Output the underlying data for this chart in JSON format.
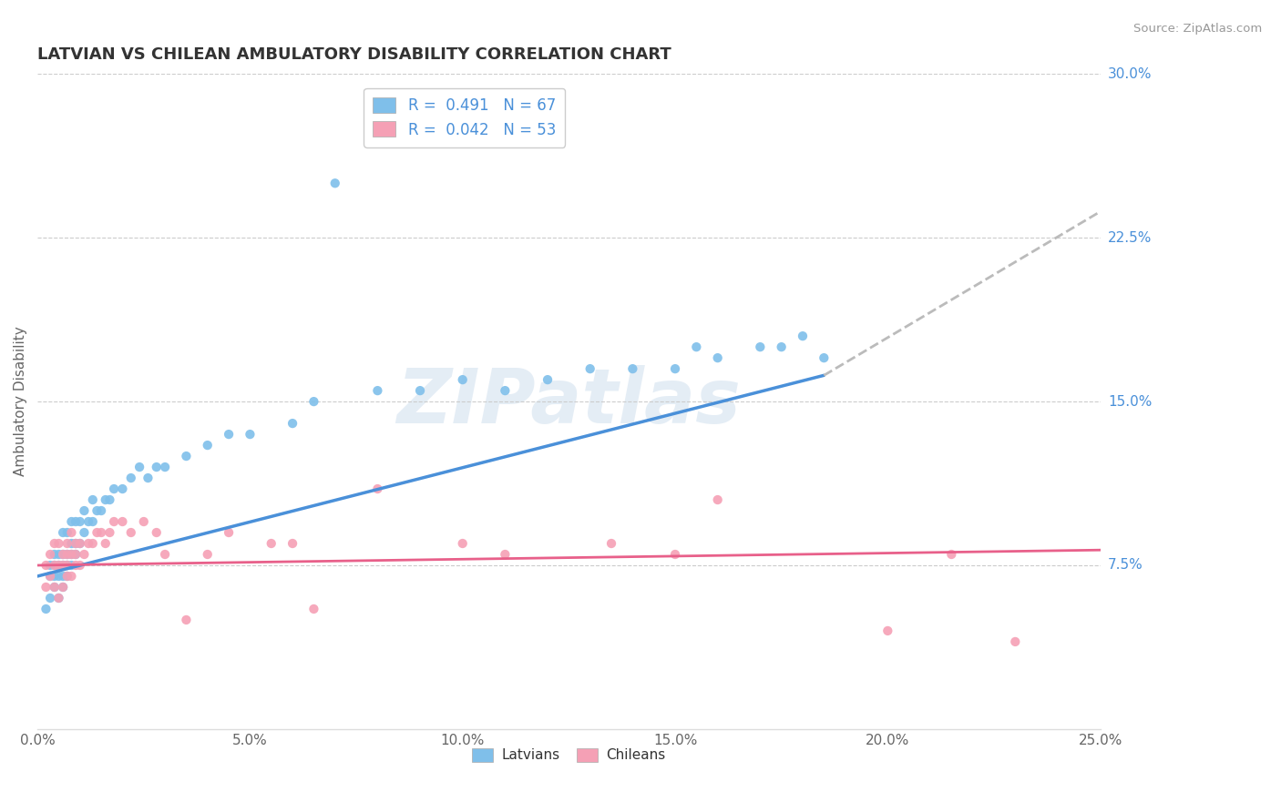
{
  "title": "LATVIAN VS CHILEAN AMBULATORY DISABILITY CORRELATION CHART",
  "source": "Source: ZipAtlas.com",
  "ylabel": "Ambulatory Disability",
  "xlim": [
    0.0,
    0.25
  ],
  "ylim": [
    0.0,
    0.3
  ],
  "xticks": [
    0.0,
    0.05,
    0.1,
    0.15,
    0.2,
    0.25
  ],
  "xticklabels": [
    "0.0%",
    "5.0%",
    "10.0%",
    "15.0%",
    "20.0%",
    "25.0%"
  ],
  "ytick_values": [
    0.075,
    0.15,
    0.225,
    0.3
  ],
  "ytick_labels": [
    "7.5%",
    "15.0%",
    "22.5%",
    "30.0%"
  ],
  "latvian_dot_color": "#7fbfea",
  "chilean_dot_color": "#f5a0b5",
  "latvian_line_color": "#4a90d9",
  "chilean_line_color": "#e8608a",
  "dashed_line_color": "#bbbbbb",
  "R_latvian": 0.491,
  "N_latvian": 67,
  "R_chilean": 0.042,
  "N_chilean": 53,
  "watermark": "ZIPatlas",
  "background_color": "#ffffff",
  "grid_color": "#cccccc",
  "axis_label_color": "#4a90d9",
  "title_color": "#333333",
  "source_color": "#999999",
  "legend_R_color": "#000000",
  "legend_N_color": "#4a90d9",
  "latvian_x": [
    0.002,
    0.003,
    0.003,
    0.003,
    0.004,
    0.004,
    0.004,
    0.004,
    0.005,
    0.005,
    0.005,
    0.005,
    0.006,
    0.006,
    0.006,
    0.006,
    0.006,
    0.007,
    0.007,
    0.007,
    0.007,
    0.008,
    0.008,
    0.008,
    0.008,
    0.009,
    0.009,
    0.009,
    0.01,
    0.01,
    0.011,
    0.011,
    0.012,
    0.013,
    0.013,
    0.014,
    0.015,
    0.016,
    0.017,
    0.018,
    0.02,
    0.022,
    0.024,
    0.026,
    0.028,
    0.03,
    0.035,
    0.04,
    0.045,
    0.05,
    0.06,
    0.065,
    0.07,
    0.08,
    0.09,
    0.1,
    0.11,
    0.12,
    0.13,
    0.14,
    0.15,
    0.155,
    0.16,
    0.17,
    0.175,
    0.18,
    0.185
  ],
  "latvian_y": [
    0.055,
    0.06,
    0.07,
    0.075,
    0.065,
    0.07,
    0.075,
    0.08,
    0.06,
    0.07,
    0.075,
    0.08,
    0.065,
    0.07,
    0.075,
    0.08,
    0.09,
    0.07,
    0.075,
    0.08,
    0.09,
    0.075,
    0.08,
    0.085,
    0.095,
    0.08,
    0.085,
    0.095,
    0.085,
    0.095,
    0.09,
    0.1,
    0.095,
    0.095,
    0.105,
    0.1,
    0.1,
    0.105,
    0.105,
    0.11,
    0.11,
    0.115,
    0.12,
    0.115,
    0.12,
    0.12,
    0.125,
    0.13,
    0.135,
    0.135,
    0.14,
    0.15,
    0.25,
    0.155,
    0.155,
    0.16,
    0.155,
    0.16,
    0.165,
    0.165,
    0.165,
    0.175,
    0.17,
    0.175,
    0.175,
    0.18,
    0.17
  ],
  "chilean_x": [
    0.002,
    0.002,
    0.003,
    0.003,
    0.004,
    0.004,
    0.004,
    0.005,
    0.005,
    0.005,
    0.006,
    0.006,
    0.006,
    0.007,
    0.007,
    0.007,
    0.007,
    0.008,
    0.008,
    0.008,
    0.009,
    0.009,
    0.009,
    0.01,
    0.01,
    0.011,
    0.012,
    0.013,
    0.014,
    0.015,
    0.016,
    0.017,
    0.018,
    0.02,
    0.022,
    0.025,
    0.028,
    0.03,
    0.035,
    0.04,
    0.045,
    0.055,
    0.06,
    0.065,
    0.08,
    0.1,
    0.11,
    0.135,
    0.15,
    0.16,
    0.2,
    0.215,
    0.23
  ],
  "chilean_y": [
    0.065,
    0.075,
    0.07,
    0.08,
    0.065,
    0.075,
    0.085,
    0.06,
    0.075,
    0.085,
    0.065,
    0.075,
    0.08,
    0.07,
    0.075,
    0.08,
    0.085,
    0.07,
    0.08,
    0.09,
    0.075,
    0.08,
    0.085,
    0.075,
    0.085,
    0.08,
    0.085,
    0.085,
    0.09,
    0.09,
    0.085,
    0.09,
    0.095,
    0.095,
    0.09,
    0.095,
    0.09,
    0.08,
    0.05,
    0.08,
    0.09,
    0.085,
    0.085,
    0.055,
    0.11,
    0.085,
    0.08,
    0.085,
    0.08,
    0.105,
    0.045,
    0.08,
    0.04
  ],
  "latvian_line_x0": 0.0,
  "latvian_line_x_solid_end": 0.185,
  "latvian_line_x_dashed_end": 0.25,
  "latvian_line_y0": 0.07,
  "latvian_line_y_solid_end": 0.162,
  "latvian_line_y_dashed_end": 0.237,
  "chilean_line_x0": 0.0,
  "chilean_line_x1": 0.25,
  "chilean_line_y0": 0.075,
  "chilean_line_y1": 0.082
}
